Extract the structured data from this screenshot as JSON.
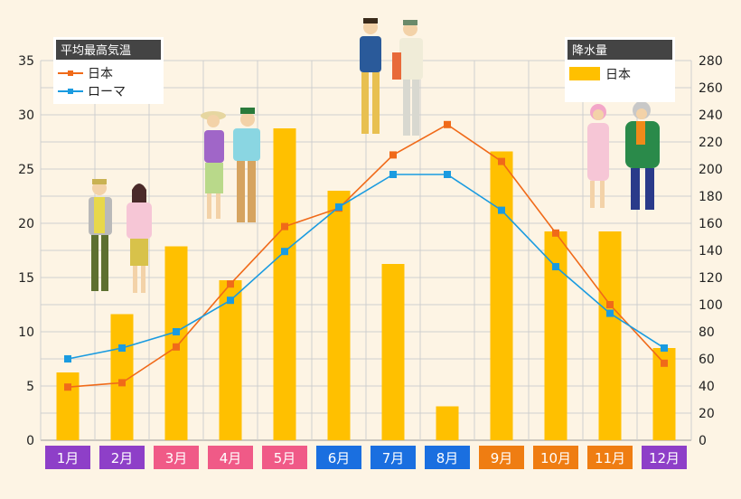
{
  "chart_data": {
    "type": "bar+line",
    "months": [
      "1月",
      "2月",
      "3月",
      "4月",
      "5月",
      "6月",
      "7月",
      "8月",
      "9月",
      "10月",
      "11月",
      "12月"
    ],
    "month_colors": [
      "#8e3fc8",
      "#8e3fc8",
      "#f05a87",
      "#f05a87",
      "#f05a87",
      "#1a6fe0",
      "#1a6fe0",
      "#1a6fe0",
      "#ef7d12",
      "#ef7d12",
      "#ef7d12",
      "#8e3fc8"
    ],
    "temp_legend_title": "平均最高気温",
    "precip_legend_title": "降水量",
    "series": [
      {
        "name": "日本",
        "color": "#f06a19",
        "values": [
          4.9,
          5.3,
          8.6,
          14.4,
          19.7,
          21.4,
          26.3,
          29.1,
          25.7,
          19.1,
          12.5,
          7.1
        ]
      },
      {
        "name": "ローマ",
        "color": "#1a9be0",
        "values": [
          7.5,
          8.5,
          10.0,
          12.9,
          17.4,
          21.5,
          24.5,
          24.5,
          21.2,
          16.0,
          11.7,
          8.5
        ]
      }
    ],
    "bars": {
      "name": "日本",
      "color": "#ffc000",
      "values": [
        50,
        93,
        143,
        118,
        230,
        184,
        130,
        25,
        213,
        154,
        154,
        68
      ]
    },
    "left_axis": {
      "min": 0,
      "max": 35,
      "ticks": [
        0,
        5,
        10,
        15,
        20,
        25,
        30,
        35
      ]
    },
    "right_axis": {
      "min": 0,
      "max": 280,
      "ticks": [
        0,
        20,
        40,
        60,
        80,
        100,
        120,
        140,
        160,
        180,
        200,
        220,
        240,
        260,
        280
      ]
    },
    "grid": true,
    "legend_temp_position": "top-left",
    "legend_precip_position": "top-right"
  }
}
